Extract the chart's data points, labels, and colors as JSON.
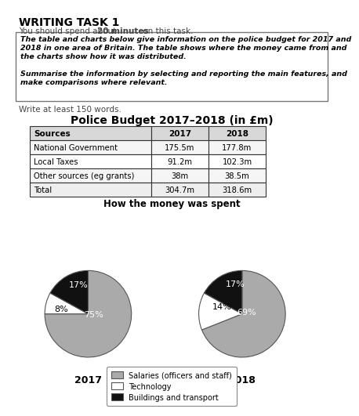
{
  "title_task": "WRITING TASK 1",
  "box_text_line1": "The table and charts below give information on the police budget for 2017 and",
  "box_text_line2": "2018 in one area of Britain. The table shows where the money came from and",
  "box_text_line3": "the charts show how it was distributed.",
  "box_text_line4": "Summarise the information by selecting and reporting the main features, and",
  "box_text_line5": "make comparisons where relevant.",
  "write_text": "Write at least 150 words.",
  "table_title": "Police Budget 2017–2018 (in £m)",
  "table_headers": [
    "Sources",
    "2017",
    "2018"
  ],
  "table_rows": [
    [
      "National Government",
      "175.5m",
      "177.8m"
    ],
    [
      "Local Taxes",
      "91.2m",
      "102.3m"
    ],
    [
      "Other sources (eg grants)",
      "38m",
      "38.5m"
    ],
    [
      "Total",
      "304.7m",
      "318.6m"
    ]
  ],
  "pie_title": "How the money was spent",
  "pie_2017": [
    75,
    8,
    17
  ],
  "pie_2018": [
    69,
    14,
    17
  ],
  "pie_labels_2017": [
    "75%",
    "8%",
    "17%"
  ],
  "pie_labels_2018": [
    "69%",
    "14%",
    "17%"
  ],
  "pie_colors": [
    "#aaaaaa",
    "#ffffff",
    "#111111"
  ],
  "pie_edge_color": "#555555",
  "pie_year_2017": "2017",
  "pie_year_2018": "2018",
  "legend_labels": [
    "Salaries (officers and staff)",
    "Technology",
    "Buildings and transport"
  ],
  "legend_colors": [
    "#aaaaaa",
    "#ffffff",
    "#111111"
  ],
  "background_color": "#ffffff",
  "box_border_color": "#777777",
  "header_bg": "#d8d8d8",
  "subtitle_normal": "You should spend about ",
  "subtitle_bold": "20 minutes",
  "subtitle_end": " on this task."
}
